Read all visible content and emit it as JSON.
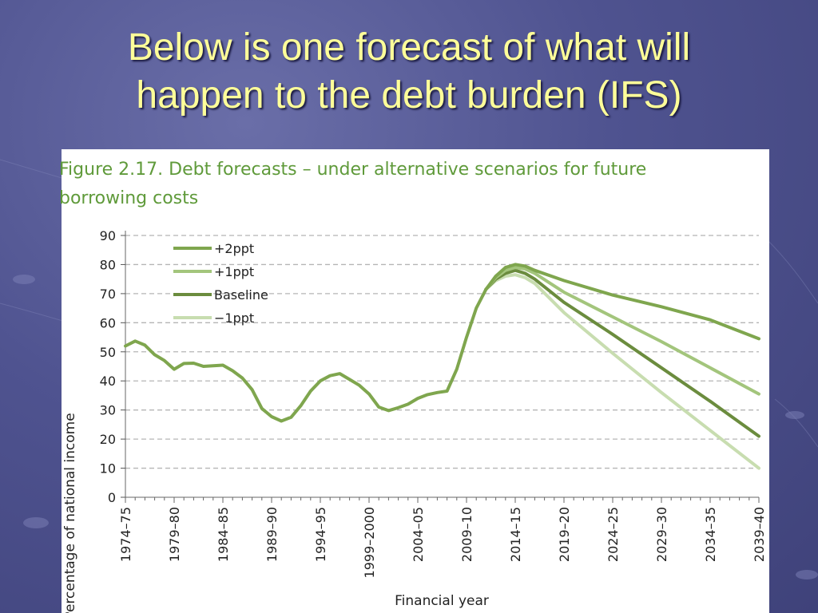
{
  "slide": {
    "title_line1": "Below is one forecast of what will",
    "title_line2": "happen to the debt burden (IFS)"
  },
  "figure": {
    "caption_line1": "Figure 2.17. Debt forecasts – under alternative scenarios for future",
    "caption_line2": "borrowing costs"
  },
  "colors": {
    "title": "#ffff99",
    "caption": "#5f9a3a",
    "plus2": "#7fa64e",
    "plus1": "#a3c57c",
    "baseline": "#6b8c3e",
    "minus1": "#c8ddb0"
  },
  "chart_data": {
    "type": "line",
    "xlabel": "Financial year",
    "ylabel": "Percentage of national income",
    "ylim": [
      0,
      90
    ],
    "yticks": [
      0,
      10,
      20,
      30,
      40,
      50,
      60,
      70,
      80,
      90
    ],
    "xlim": [
      1974,
      2039
    ],
    "xtick_labels": [
      "1974–75",
      "1979–80",
      "1984–85",
      "1989–90",
      "1994–95",
      "1999–2000",
      "2004–05",
      "2009–10",
      "2014–15",
      "2019–20",
      "2024–25",
      "2029–30",
      "2034–35",
      "2039–40"
    ],
    "grid": "horizontal-dashed",
    "legend_position": "top-left",
    "history": [
      [
        1974,
        52
      ],
      [
        1975,
        53.7
      ],
      [
        1976,
        52.3
      ],
      [
        1977,
        49
      ],
      [
        1978,
        47
      ],
      [
        1979,
        44
      ],
      [
        1980,
        46
      ],
      [
        1981,
        46.1
      ],
      [
        1982,
        45
      ],
      [
        1983,
        45.2
      ],
      [
        1984,
        45.4
      ],
      [
        1985,
        43.5
      ],
      [
        1986,
        41
      ],
      [
        1987,
        37
      ],
      [
        1988,
        30.5
      ],
      [
        1989,
        27.7
      ],
      [
        1990,
        26.2
      ],
      [
        1991,
        27.5
      ],
      [
        1992,
        31.5
      ],
      [
        1993,
        36.5
      ],
      [
        1994,
        40
      ],
      [
        1995,
        41.8
      ],
      [
        1996,
        42.5
      ],
      [
        1997,
        40.5
      ],
      [
        1998,
        38.5
      ],
      [
        1999,
        35.5
      ],
      [
        2000,
        31
      ],
      [
        2001,
        29.8
      ],
      [
        2002,
        30.8
      ],
      [
        2003,
        32
      ],
      [
        2004,
        34
      ],
      [
        2005,
        35.3
      ],
      [
        2006,
        36
      ],
      [
        2007,
        36.5
      ],
      [
        2008,
        44
      ],
      [
        2009,
        55
      ],
      [
        2010,
        65
      ],
      [
        2011,
        71.5
      ]
    ],
    "series": [
      {
        "name": "+2ppt",
        "values": [
          [
            2011,
            71.5
          ],
          [
            2012,
            76
          ],
          [
            2013,
            79
          ],
          [
            2014,
            80
          ],
          [
            2015,
            79.5
          ],
          [
            2016,
            78
          ],
          [
            2019,
            74.5
          ],
          [
            2024,
            69.5
          ],
          [
            2029,
            65.5
          ],
          [
            2034,
            61
          ],
          [
            2039,
            54.5
          ]
        ]
      },
      {
        "name": "+1ppt",
        "values": [
          [
            2011,
            71.5
          ],
          [
            2012,
            75.5
          ],
          [
            2013,
            78
          ],
          [
            2014,
            79
          ],
          [
            2015,
            78.5
          ],
          [
            2016,
            77
          ],
          [
            2019,
            70.5
          ],
          [
            2024,
            62
          ],
          [
            2029,
            53.5
          ],
          [
            2034,
            44.5
          ],
          [
            2039,
            35.5
          ]
        ]
      },
      {
        "name": "Baseline",
        "values": [
          [
            2011,
            71.5
          ],
          [
            2012,
            75
          ],
          [
            2013,
            77
          ],
          [
            2014,
            78
          ],
          [
            2015,
            77
          ],
          [
            2016,
            75
          ],
          [
            2019,
            67
          ],
          [
            2024,
            56
          ],
          [
            2029,
            44.5
          ],
          [
            2034,
            33
          ],
          [
            2039,
            21
          ]
        ]
      },
      {
        "name": "−1ppt",
        "values": [
          [
            2011,
            71.5
          ],
          [
            2012,
            74.5
          ],
          [
            2013,
            76
          ],
          [
            2014,
            76.5
          ],
          [
            2015,
            75.5
          ],
          [
            2016,
            73.5
          ],
          [
            2019,
            63.5
          ],
          [
            2024,
            49.5
          ],
          [
            2029,
            36
          ],
          [
            2034,
            23
          ],
          [
            2039,
            10
          ]
        ]
      }
    ]
  }
}
